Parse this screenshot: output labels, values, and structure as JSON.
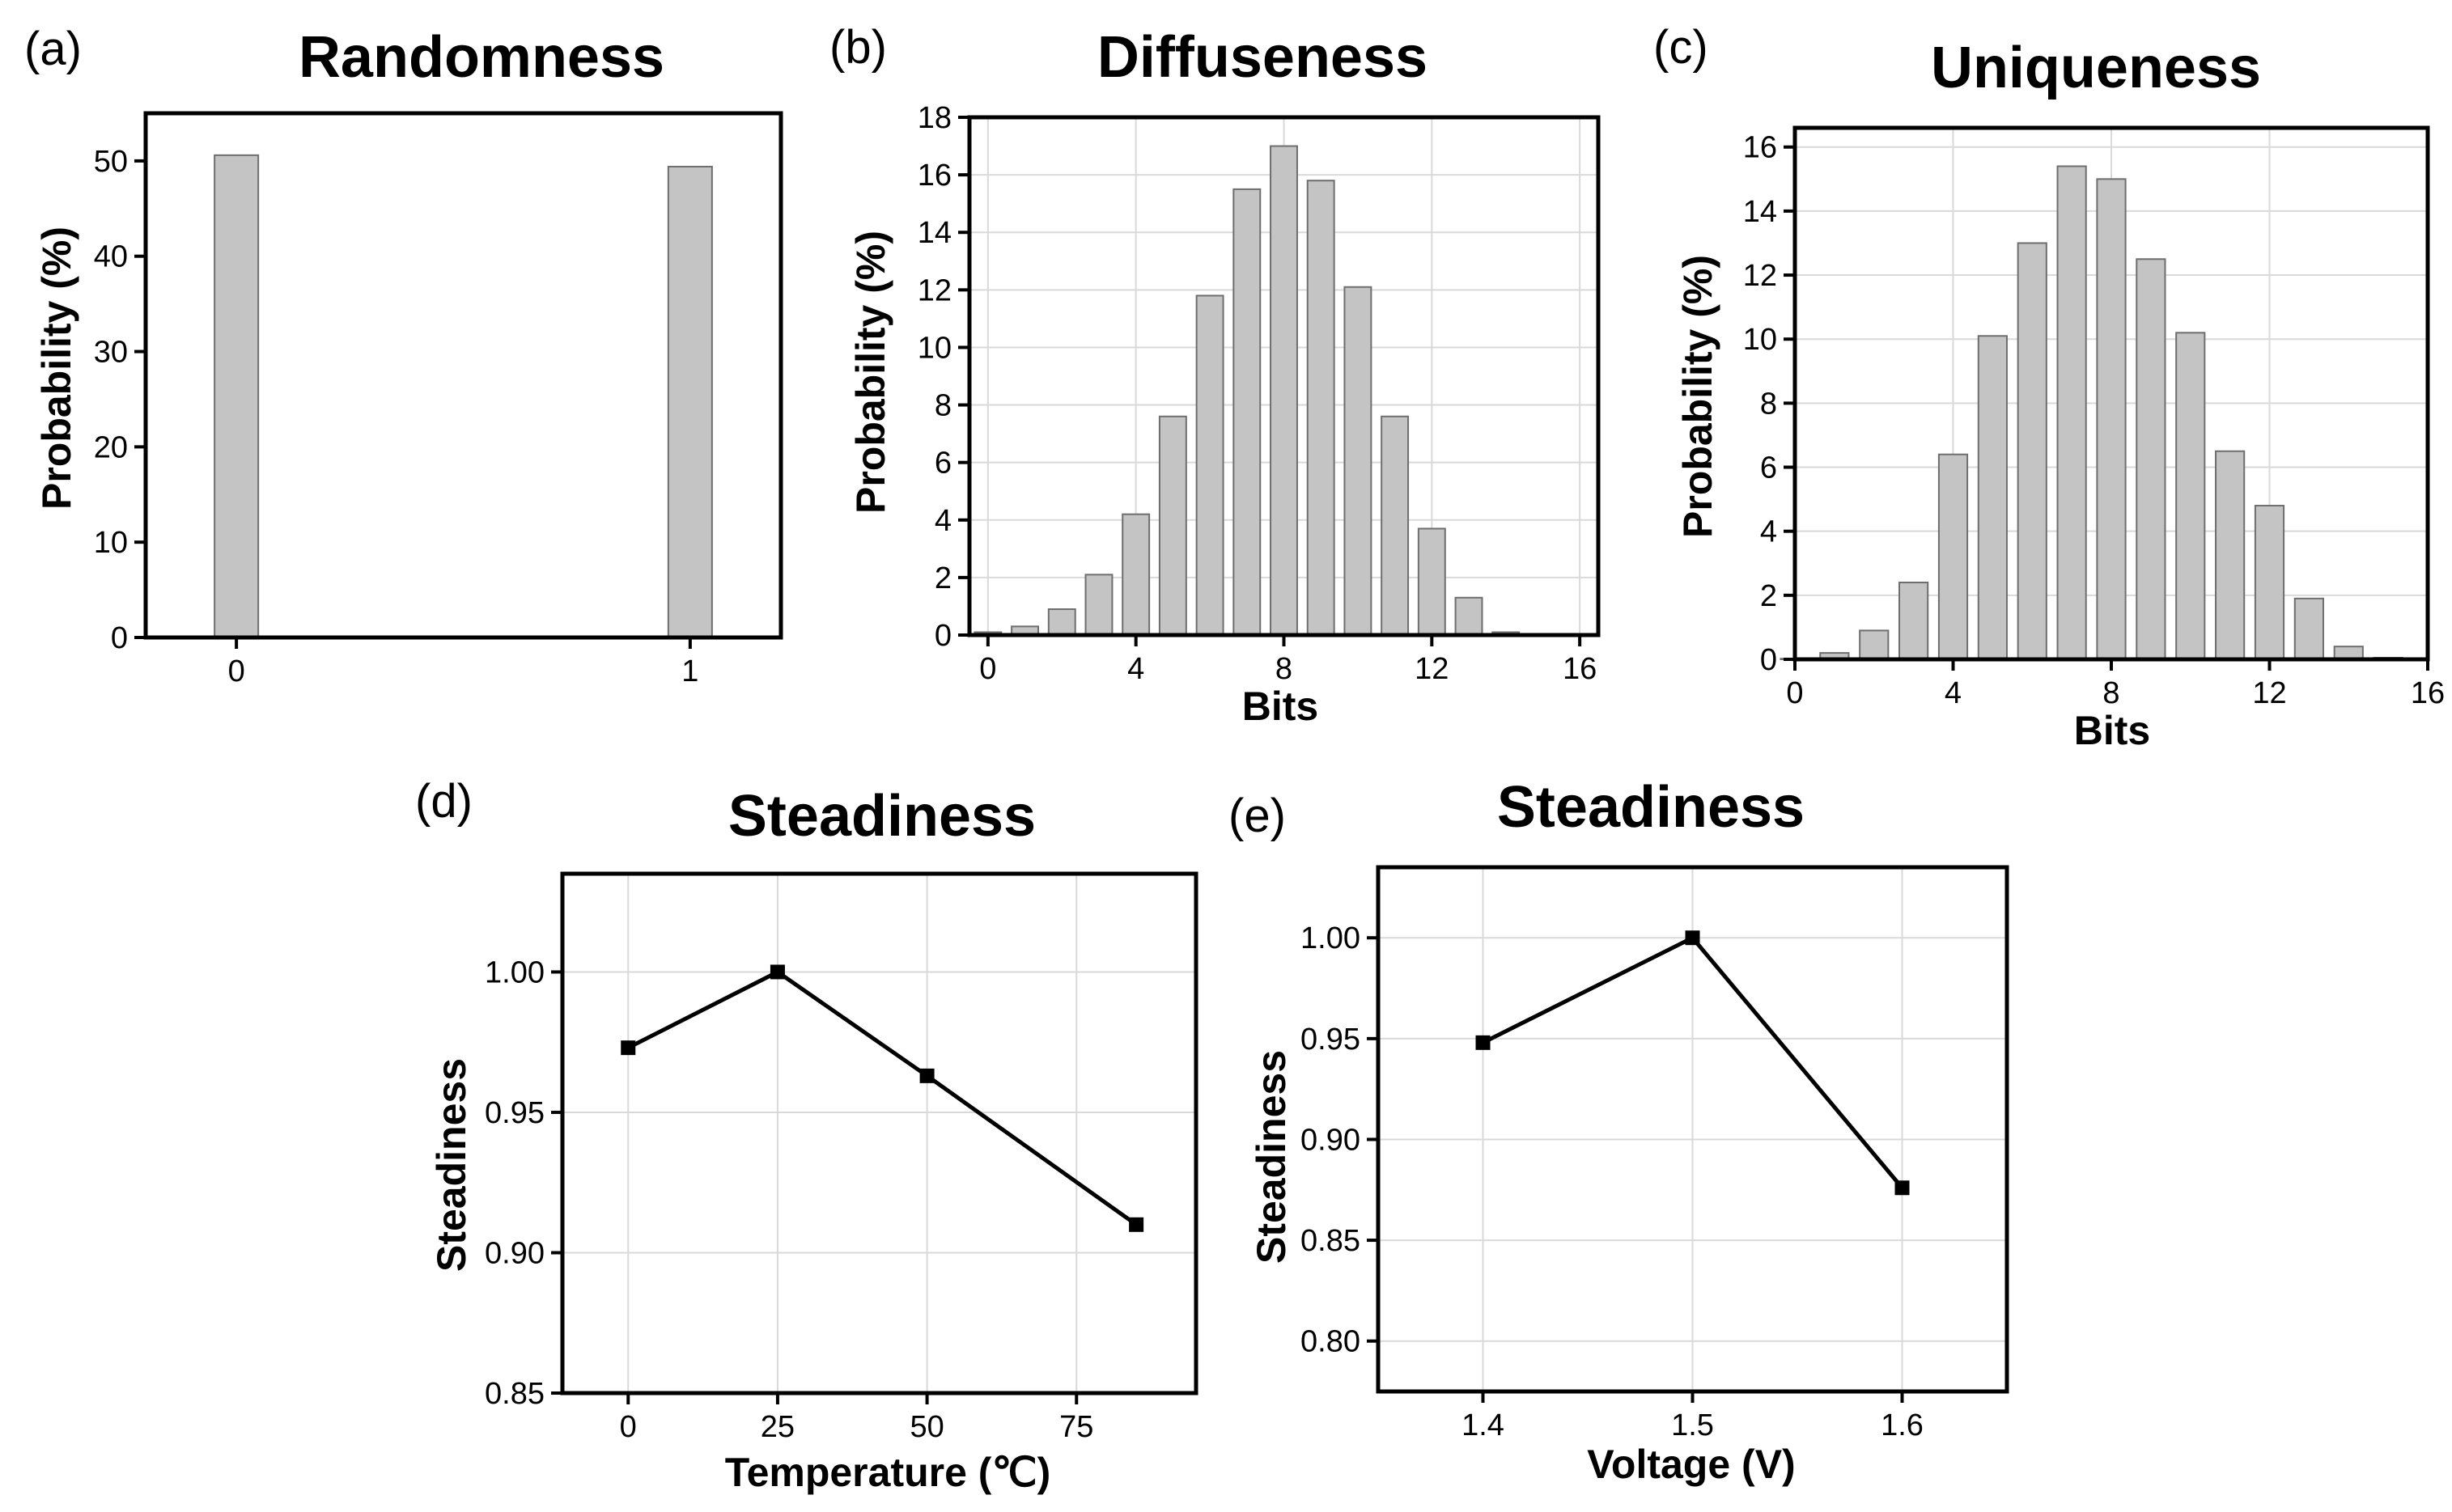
{
  "chart_data": [
    {
      "id": "a",
      "type": "bar",
      "panel_label": "(a)",
      "title": "Randomness",
      "xlabel": "",
      "ylabel": "Probability (%)",
      "categories": [
        0,
        1
      ],
      "values": [
        50.6,
        49.4
      ],
      "xlim": [
        -0.2,
        1.2
      ],
      "ylim": [
        0,
        55
      ],
      "xticks": [
        0,
        1
      ],
      "yticks": [
        0,
        10,
        20,
        30,
        40,
        50
      ],
      "grid": false,
      "bar_color": "#c4c4c4"
    },
    {
      "id": "b",
      "type": "bar",
      "panel_label": "(b)",
      "title": "Diffuseness",
      "xlabel": "Bits",
      "ylabel": "Probability (%)",
      "categories": [
        0,
        1,
        2,
        3,
        4,
        5,
        6,
        7,
        8,
        9,
        10,
        11,
        12,
        13,
        14,
        15
      ],
      "values": [
        0.1,
        0.3,
        0.9,
        2.1,
        4.2,
        7.6,
        11.8,
        15.5,
        17.0,
        15.8,
        12.1,
        7.6,
        3.7,
        1.3,
        0.1,
        0.02
      ],
      "xlim": [
        -0.5,
        16.5
      ],
      "ylim": [
        0,
        18
      ],
      "xticks": [
        0,
        4,
        8,
        12,
        16
      ],
      "yticks": [
        0,
        2,
        4,
        6,
        8,
        10,
        12,
        14,
        16,
        18
      ],
      "grid": true,
      "bar_color": "#c4c4c4"
    },
    {
      "id": "c",
      "type": "bar",
      "panel_label": "(c)",
      "title": "Uniqueness",
      "xlabel": "Bits",
      "ylabel": "Probability (%)",
      "categories": [
        0,
        1,
        2,
        3,
        4,
        5,
        6,
        7,
        8,
        9,
        10,
        11,
        12,
        13,
        14,
        15
      ],
      "values": [
        0.02,
        0.2,
        0.9,
        2.4,
        6.4,
        10.1,
        13.0,
        15.4,
        15.0,
        12.5,
        10.2,
        6.5,
        4.8,
        1.9,
        0.4,
        0.05
      ],
      "xlim": [
        0,
        16
      ],
      "ylim": [
        0,
        16.6
      ],
      "xticks": [
        0,
        4,
        8,
        12,
        16
      ],
      "yticks": [
        0,
        2,
        4,
        6,
        8,
        10,
        12,
        14,
        16
      ],
      "grid": true,
      "bar_color": "#c4c4c4"
    },
    {
      "id": "d",
      "type": "line",
      "panel_label": "(d)",
      "title": "Steadiness",
      "xlabel": "Temperature (℃)",
      "ylabel": "Steadiness",
      "x": [
        0,
        25,
        50,
        85
      ],
      "y": [
        0.973,
        1.0,
        0.963,
        0.91
      ],
      "xlim": [
        -11,
        95
      ],
      "ylim": [
        0.85,
        1.035
      ],
      "xticks": [
        0,
        25,
        50,
        75
      ],
      "yticks": [
        0.85,
        0.9,
        0.95,
        1.0
      ],
      "ytick_decimals": 2,
      "grid": true,
      "marker": "square"
    },
    {
      "id": "e",
      "type": "line",
      "panel_label": "(e)",
      "title": "Steadiness",
      "xlabel": "Voltage (V)",
      "ylabel": "Steadiness",
      "x": [
        1.4,
        1.5,
        1.6
      ],
      "y": [
        0.948,
        1.0,
        0.876
      ],
      "xlim": [
        1.35,
        1.65
      ],
      "ylim": [
        0.775,
        1.035
      ],
      "xticks": [
        1.4,
        1.5,
        1.6
      ],
      "yticks": [
        0.8,
        0.85,
        0.9,
        0.95,
        1.0
      ],
      "ytick_decimals": 2,
      "xtick_decimals": 1,
      "grid": true,
      "marker": "square"
    }
  ]
}
